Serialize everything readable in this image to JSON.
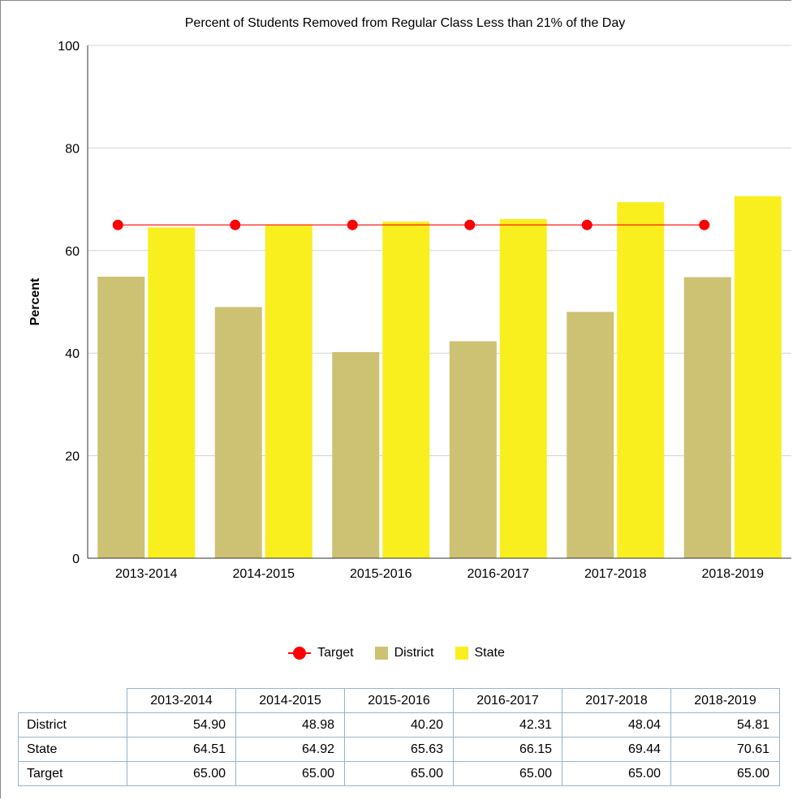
{
  "chart_data": {
    "type": "bar",
    "title": "Percent of Students Removed from Regular Class Less than 21% of the Day",
    "ylabel": "Percent",
    "xlabel": "",
    "ylim": [
      0,
      100
    ],
    "yticks": [
      0,
      20,
      40,
      60,
      80,
      100
    ],
    "grid": true,
    "legend_position": "bottom",
    "categories": [
      "2013-2014",
      "2014-2015",
      "2015-2016",
      "2016-2017",
      "2017-2018",
      "2018-2019"
    ],
    "series": [
      {
        "name": "District",
        "type": "bar",
        "color": "#cdc173",
        "values": [
          54.9,
          48.98,
          40.2,
          42.31,
          48.04,
          54.81
        ]
      },
      {
        "name": "State",
        "type": "bar",
        "color": "#f9ef1f",
        "values": [
          64.51,
          64.92,
          65.63,
          66.15,
          69.44,
          70.61
        ]
      },
      {
        "name": "Target",
        "type": "line",
        "color": "#ff0000",
        "values": [
          65.0,
          65.0,
          65.0,
          65.0,
          65.0,
          65.0
        ]
      }
    ],
    "legend": [
      "Target",
      "District",
      "State"
    ]
  },
  "table": {
    "headers": [
      "2013-2014",
      "2014-2015",
      "2015-2016",
      "2016-2017",
      "2017-2018",
      "2018-2019"
    ],
    "rows": [
      {
        "label": "District",
        "cells": [
          "54.90",
          "48.98",
          "40.20",
          "42.31",
          "48.04",
          "54.81"
        ]
      },
      {
        "label": "State",
        "cells": [
          "64.51",
          "64.92",
          "65.63",
          "66.15",
          "69.44",
          "70.61"
        ]
      },
      {
        "label": "Target",
        "cells": [
          "65.00",
          "65.00",
          "65.00",
          "65.00",
          "65.00",
          "65.00"
        ]
      }
    ]
  }
}
